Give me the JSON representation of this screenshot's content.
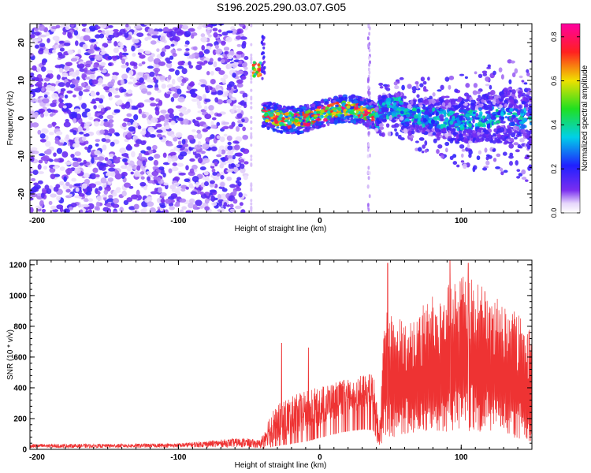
{
  "title": "S196.2025.290.03.07.G05",
  "colors": {
    "snr_line": "#ee3333",
    "axis": "#000000",
    "background": "#ffffff"
  },
  "chart_data": [
    {
      "type": "heatmap",
      "title": "S196.2025.290.03.07.G05",
      "xlabel": "Height of straight line (km)",
      "ylabel": "Frequency (Hz)",
      "xlim": [
        -205,
        150
      ],
      "ylim": [
        -25,
        25
      ],
      "xticks": [
        -200,
        -100,
        0,
        100
      ],
      "xtick_labels": [
        "-200",
        "-100",
        "0",
        "100"
      ],
      "yticks": [
        -20,
        -10,
        0,
        10,
        20
      ],
      "ytick_labels": [
        "-20",
        "-10",
        "0",
        "10",
        "20"
      ],
      "colorbar": {
        "label": "Normalized spectral amplitude",
        "range": [
          0,
          0.86
        ],
        "ticks": [
          0.0,
          0.2,
          0.4,
          0.6,
          0.8
        ],
        "tick_labels": [
          "0.0",
          "0.2",
          "0.4",
          "0.6",
          "0.8"
        ],
        "colormap": "rainbow (purple-blue-cyan-green-yellow-red-magenta)"
      },
      "regions": [
        {
          "x_range": [
            -205,
            -52
          ],
          "freq_range": [
            -25,
            25
          ],
          "amplitude": "low noise (0.05-0.2)"
        },
        {
          "x_range": [
            -52,
            -40
          ],
          "freq_range": [
            -25,
            25
          ],
          "amplitude": "empty gap"
        },
        {
          "x_range": [
            -50,
            -42
          ],
          "freq_center": 12.5,
          "amplitude": "peak ~0.75"
        },
        {
          "x_range": [
            -40,
            40
          ],
          "freq_center": 1,
          "amplitude": "ridge 0.2-0.85"
        },
        {
          "x_range": [
            40,
            150
          ],
          "freq_center": 0,
          "amplitude": "ridge 0.1-0.4 with widening band"
        }
      ]
    },
    {
      "type": "line",
      "title": "",
      "xlabel": "Height of straight line (km)",
      "ylabel": "SNR (10 * v/v)",
      "xlim": [
        -205,
        150
      ],
      "ylim": [
        0,
        1230
      ],
      "xticks": [
        -200,
        -100,
        0,
        100
      ],
      "xtick_labels": [
        "-200",
        "-100",
        "0",
        "100"
      ],
      "yticks": [
        0,
        200,
        400,
        600,
        800,
        1000,
        1200
      ],
      "ytick_labels": [
        "0",
        "200",
        "400",
        "600",
        "800",
        "1000",
        "1200"
      ],
      "series": [
        {
          "name": "SNR",
          "envelope": [
            {
              "x": -205,
              "low": 10,
              "high": 35
            },
            {
              "x": -150,
              "low": 10,
              "high": 35
            },
            {
              "x": -100,
              "low": 12,
              "high": 40
            },
            {
              "x": -55,
              "low": 15,
              "high": 75
            },
            {
              "x": -42,
              "low": 5,
              "high": 60
            },
            {
              "x": -35,
              "low": 30,
              "high": 250
            },
            {
              "x": -25,
              "low": 60,
              "high": 330
            },
            {
              "x": -10,
              "low": 100,
              "high": 380
            },
            {
              "x": 0,
              "low": 150,
              "high": 410
            },
            {
              "x": 15,
              "low": 220,
              "high": 450
            },
            {
              "x": 30,
              "low": 260,
              "high": 480
            },
            {
              "x": 38,
              "low": 250,
              "high": 500
            },
            {
              "x": 42,
              "low": 20,
              "high": 150
            },
            {
              "x": 46,
              "low": 60,
              "high": 900
            },
            {
              "x": 60,
              "low": 80,
              "high": 850
            },
            {
              "x": 80,
              "low": 100,
              "high": 1000
            },
            {
              "x": 100,
              "low": 120,
              "high": 1150
            },
            {
              "x": 125,
              "low": 100,
              "high": 1000
            },
            {
              "x": 150,
              "low": 50,
              "high": 800
            }
          ],
          "spikes": [
            {
              "x": -27,
              "y": 690
            },
            {
              "x": -8,
              "y": 660
            },
            {
              "x": 48,
              "y": 1210
            },
            {
              "x": 92,
              "y": 1230
            },
            {
              "x": 105,
              "y": 1210
            }
          ]
        }
      ]
    }
  ]
}
